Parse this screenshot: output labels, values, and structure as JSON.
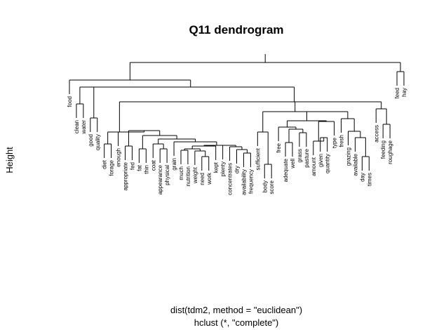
{
  "chart_data": {
    "type": "dendrogram",
    "title": "Q11 dendrogram",
    "ylabel": "Height",
    "sub_lines": [
      "dist(tdm2, method = \"euclidean\")",
      "hclust (*, \"complete\")"
    ],
    "leaves": [
      "food",
      "clean",
      "water",
      "good",
      "quality",
      "diet",
      "forage",
      "enough",
      "appropriate",
      "fed",
      "fat",
      "thin",
      "coat",
      "appearance",
      "physical",
      "grain",
      "much",
      "nutrition",
      "weight",
      "need",
      "work",
      "kept",
      "plenty",
      "concentrates",
      "dry",
      "availability",
      "frequency",
      "sufficient",
      "body",
      "score",
      "free",
      "adequate",
      "well",
      "grass",
      "pasture",
      "amount",
      "given",
      "quantity",
      "type",
      "fresh",
      "grazing",
      "available",
      "day",
      "times",
      "access",
      "feeding",
      "roughage",
      "feed",
      "hay"
    ],
    "merges": [
      {
        "a": "clean",
        "b": "water",
        "h": 148
      },
      {
        "a": "good",
        "b": "quality",
        "h": 168
      },
      {
        "a": "diet",
        "b": "forage",
        "h": 205
      },
      {
        "a": "appropriate",
        "b": "fed",
        "h": 208
      },
      {
        "a": "fat",
        "b": "thin",
        "h": 212
      },
      {
        "a": "appearance",
        "b": "physical",
        "h": 212
      },
      {
        "a": "C6",
        "b": "coat",
        "h": 205
      },
      {
        "a": "much",
        "b": "nutrition",
        "h": 214
      },
      {
        "a": "need",
        "b": "work",
        "h": 223
      },
      {
        "a": "weight",
        "b": "C9",
        "h": 215
      },
      {
        "a": "C8",
        "b": "C10",
        "h": 212
      },
      {
        "a": "C11",
        "b": "kept",
        "h": 208
      },
      {
        "a": "availability",
        "b": "frequency",
        "h": 218
      },
      {
        "a": "dry",
        "b": "C13",
        "h": 213
      },
      {
        "a": "concentrates",
        "b": "C14",
        "h": 209
      },
      {
        "a": "plenty",
        "b": "C15",
        "h": 207
      },
      {
        "a": "C12",
        "b": "C16",
        "h": 207
      },
      {
        "a": "grain",
        "b": "C17",
        "h": 202
      },
      {
        "a": "C7",
        "b": "C18",
        "h": 198
      },
      {
        "a": "C5",
        "b": "C19",
        "h": 193
      },
      {
        "a": "C4",
        "b": "C20",
        "h": 186
      },
      {
        "a": "enough",
        "b": "C21",
        "h": 188
      },
      {
        "a": "C3",
        "b": "C22",
        "h": 188
      },
      {
        "a": "body",
        "b": "score",
        "h": 234
      },
      {
        "a": "sufficient",
        "b": "C24",
        "h": 188
      },
      {
        "a": "adequate",
        "b": "well",
        "h": 203
      },
      {
        "a": "grass",
        "b": "pasture",
        "h": 189
      },
      {
        "a": "C26",
        "b": "C27",
        "h": 184
      },
      {
        "a": "free",
        "b": "C28",
        "h": 181
      },
      {
        "a": "given",
        "b": "quantity",
        "h": 196
      },
      {
        "a": "amount",
        "b": "C30",
        "h": 201
      },
      {
        "a": "C31",
        "b": "type",
        "h": 173
      },
      {
        "a": "C29",
        "b": "C32",
        "h": 172
      },
      {
        "a": "day",
        "b": "times",
        "h": 223
      },
      {
        "a": "available",
        "b": "C34",
        "h": 196
      },
      {
        "a": "grazing",
        "b": "C35",
        "h": 187
      },
      {
        "a": "fresh",
        "b": "C36",
        "h": 169
      },
      {
        "a": "C33",
        "b": "C37",
        "h": 159
      },
      {
        "a": "C25",
        "b": "C38",
        "h": 159
      },
      {
        "a": "C23",
        "b": "C39",
        "h": 145
      },
      {
        "a": "feeding",
        "b": "roughage",
        "h": 177
      },
      {
        "a": "access",
        "b": "C41",
        "h": 155
      },
      {
        "a": "C40",
        "b": "C42",
        "h": 145
      },
      {
        "a": "C1",
        "b": "C2",
        "h": 124
      },
      {
        "a": "C44",
        "b": "C43",
        "h": 124
      },
      {
        "a": "food",
        "b": "C45",
        "h": 114
      },
      {
        "a": "feed",
        "b": "hay",
        "h": 102
      },
      {
        "a": "C46",
        "b": "C47",
        "h": 89
      }
    ]
  }
}
